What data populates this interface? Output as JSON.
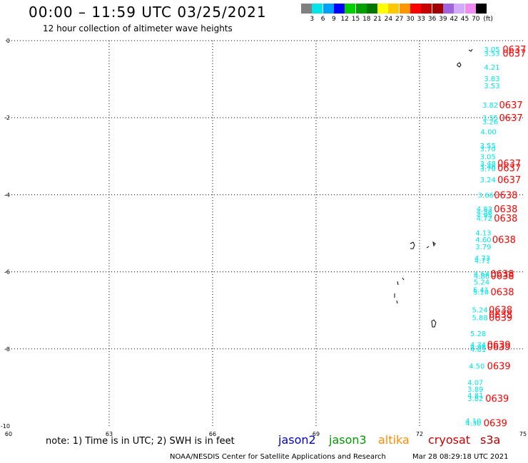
{
  "header": {
    "title": "00:00 – 11:59 UTC 03/25/2021",
    "subtitle": "12 hour collection of altimeter wave heights"
  },
  "legend": {
    "colors": [
      "#808080",
      "#00e6e6",
      "#00a0ff",
      "#0000ff",
      "#00d000",
      "#00a000",
      "#007800",
      "#ffff00",
      "#ffc800",
      "#ff9600",
      "#ff0000",
      "#c80000",
      "#a00000",
      "#a064dc",
      "#d2aaff",
      "#f08cf0",
      "#000000"
    ],
    "ticks": [
      "3",
      "6",
      "9",
      "12",
      "15",
      "18",
      "21",
      "24",
      "27",
      "30",
      "33",
      "36",
      "39",
      "42",
      "45",
      "70",
      "(ft)"
    ]
  },
  "footer": {
    "note": "note:  1) Time is in UTC;  2) SWH is in feet",
    "satellites": [
      {
        "name": "jason2",
        "color": "#0000cc"
      },
      {
        "name": "jason3",
        "color": "#009900"
      },
      {
        "name": "altika",
        "color": "#ff8c00"
      },
      {
        "name": "cryosat",
        "color": "#cc0000"
      },
      {
        "name": "s3a",
        "color": "#b00000"
      }
    ],
    "credit": "NOAA/NESDIS Center for Satellite Applications and Research",
    "timestamp": "Mar 28 08:29:18 UTC 2021"
  },
  "chart_data": {
    "type": "scatter",
    "title": "00:00 – 11:59 UTC 03/25/2021",
    "xlabel": "",
    "ylabel": "",
    "xlim": [
      60,
      75
    ],
    "ylim": [
      -10,
      0
    ],
    "x_ticks": [
      "60",
      "63",
      "66",
      "69",
      "72",
      "75"
    ],
    "y_ticks": [
      "0",
      "-2",
      "-4",
      "-6",
      "-8",
      "-10"
    ],
    "grid": true,
    "grid_x": [
      63,
      66,
      69,
      72
    ],
    "grid_y": [
      -2,
      -4,
      -6,
      -8
    ],
    "swh_color": "#00e6e6",
    "time_color": "#ff0000",
    "swh_labels": [
      {
        "x": 74.1,
        "y": -0.22,
        "text": "3.05"
      },
      {
        "x": 74.1,
        "y": -0.32,
        "text": "3.53"
      },
      {
        "x": 74.1,
        "y": -0.68,
        "text": "4.21"
      },
      {
        "x": 74.1,
        "y": -0.98,
        "text": "3.83"
      },
      {
        "x": 74.1,
        "y": -1.16,
        "text": "3.53"
      },
      {
        "x": 74.05,
        "y": -1.66,
        "text": "3.82"
      },
      {
        "x": 74.05,
        "y": -2.0,
        "text": "3.55"
      },
      {
        "x": 74.05,
        "y": -2.1,
        "text": "3.26"
      },
      {
        "x": 74.0,
        "y": -2.36,
        "text": "4.00"
      },
      {
        "x": 73.98,
        "y": -2.72,
        "text": "3.55"
      },
      {
        "x": 73.98,
        "y": -2.8,
        "text": "3.70"
      },
      {
        "x": 73.98,
        "y": -3.0,
        "text": "3.05"
      },
      {
        "x": 73.98,
        "y": -3.18,
        "text": "3.48"
      },
      {
        "x": 73.98,
        "y": -3.26,
        "text": "3.46"
      },
      {
        "x": 73.98,
        "y": -3.32,
        "text": "3.70"
      },
      {
        "x": 73.98,
        "y": -3.6,
        "text": "3.24"
      },
      {
        "x": 73.92,
        "y": -4.0,
        "text": "3.66"
      },
      {
        "x": 73.88,
        "y": -4.36,
        "text": "4.83"
      },
      {
        "x": 73.88,
        "y": -4.44,
        "text": "4.38"
      },
      {
        "x": 73.88,
        "y": -4.52,
        "text": "4.95"
      },
      {
        "x": 73.88,
        "y": -4.6,
        "text": "4.72"
      },
      {
        "x": 73.85,
        "y": -4.98,
        "text": "4.13"
      },
      {
        "x": 73.85,
        "y": -5.16,
        "text": "4.60"
      },
      {
        "x": 73.85,
        "y": -5.34,
        "text": "3.79"
      },
      {
        "x": 73.82,
        "y": -5.64,
        "text": "4.73"
      },
      {
        "x": 73.82,
        "y": -5.7,
        "text": "4.71"
      },
      {
        "x": 73.8,
        "y": -6.04,
        "text": "4.64"
      },
      {
        "x": 73.8,
        "y": -6.1,
        "text": "4.86"
      },
      {
        "x": 73.8,
        "y": -6.26,
        "text": "5.24"
      },
      {
        "x": 73.78,
        "y": -6.46,
        "text": "5.41"
      },
      {
        "x": 73.78,
        "y": -6.52,
        "text": "5.10"
      },
      {
        "x": 73.75,
        "y": -6.98,
        "text": "5.24"
      },
      {
        "x": 73.75,
        "y": -7.18,
        "text": "5.88"
      },
      {
        "x": 73.7,
        "y": -7.6,
        "text": "5.28"
      },
      {
        "x": 73.7,
        "y": -7.88,
        "text": "4.74"
      },
      {
        "x": 73.7,
        "y": -7.94,
        "text": "4.96"
      },
      {
        "x": 73.7,
        "y": -8.0,
        "text": "4.81"
      },
      {
        "x": 73.66,
        "y": -8.44,
        "text": "4.50"
      },
      {
        "x": 73.62,
        "y": -8.86,
        "text": "4.07"
      },
      {
        "x": 73.62,
        "y": -9.04,
        "text": "3.89"
      },
      {
        "x": 73.62,
        "y": -9.2,
        "text": "4.81"
      },
      {
        "x": 73.62,
        "y": -9.28,
        "text": "3.82"
      },
      {
        "x": 73.56,
        "y": -9.86,
        "text": "4.10"
      },
      {
        "x": 73.56,
        "y": -9.92,
        "text": "4.30"
      }
    ],
    "time_labels": [
      {
        "x": 74.75,
        "y": -0.22,
        "text": "0637"
      },
      {
        "x": 74.75,
        "y": -0.32,
        "text": "0637"
      },
      {
        "x": 74.65,
        "y": -1.66,
        "text": "0637"
      },
      {
        "x": 74.65,
        "y": -2.0,
        "text": "0637"
      },
      {
        "x": 74.6,
        "y": -3.18,
        "text": "0637"
      },
      {
        "x": 74.6,
        "y": -3.3,
        "text": "0637"
      },
      {
        "x": 74.6,
        "y": -3.6,
        "text": "0637"
      },
      {
        "x": 74.5,
        "y": -4.0,
        "text": "0638"
      },
      {
        "x": 74.5,
        "y": -4.36,
        "text": "0638"
      },
      {
        "x": 74.5,
        "y": -4.6,
        "text": "0638"
      },
      {
        "x": 74.45,
        "y": -5.16,
        "text": "0638"
      },
      {
        "x": 74.4,
        "y": -6.04,
        "text": "0638"
      },
      {
        "x": 74.4,
        "y": -6.1,
        "text": "0638"
      },
      {
        "x": 74.4,
        "y": -6.52,
        "text": "0638"
      },
      {
        "x": 74.35,
        "y": -6.98,
        "text": "0638"
      },
      {
        "x": 74.35,
        "y": -7.1,
        "text": "0638"
      },
      {
        "x": 74.35,
        "y": -7.18,
        "text": "0639"
      },
      {
        "x": 74.3,
        "y": -7.88,
        "text": "0639"
      },
      {
        "x": 74.3,
        "y": -7.94,
        "text": "0639"
      },
      {
        "x": 74.3,
        "y": -8.44,
        "text": "0639"
      },
      {
        "x": 74.25,
        "y": -9.28,
        "text": "0639"
      },
      {
        "x": 74.2,
        "y": -9.92,
        "text": "0639"
      }
    ]
  }
}
